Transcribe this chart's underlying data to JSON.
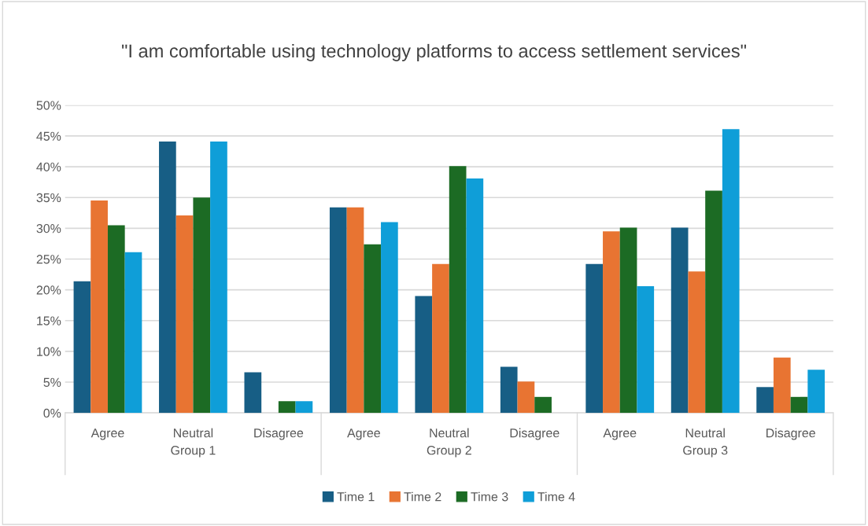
{
  "chart_data": {
    "type": "bar",
    "title": "\"I am comfortable using technology platforms to access settlement services\"",
    "categories": [
      "Agree",
      "Neutral",
      "Disagree",
      "Agree",
      "Neutral",
      "Disagree",
      "Agree",
      "Neutral",
      "Disagree"
    ],
    "annotations": [
      "Group 1",
      "Group 2",
      "Group 3"
    ],
    "series": [
      {
        "name": "Time 1",
        "color": "#175e85",
        "values": [
          21.4,
          44.1,
          6.6,
          33.4,
          19.0,
          7.5,
          24.2,
          30.1,
          4.2
        ]
      },
      {
        "name": "Time 2",
        "color": "#e87432",
        "values": [
          34.5,
          32.1,
          0,
          33.4,
          24.2,
          5.1,
          29.5,
          23.0,
          9.0
        ]
      },
      {
        "name": "Time 3",
        "color": "#1c6b24",
        "values": [
          30.5,
          35.0,
          1.9,
          27.4,
          40.1,
          2.6,
          30.1,
          36.1,
          2.6
        ]
      },
      {
        "name": "Time 4",
        "color": "#0f9ed8",
        "values": [
          26.1,
          44.1,
          1.9,
          31.0,
          38.1,
          0,
          20.6,
          46.1,
          7.0
        ]
      }
    ],
    "ylim": [
      0,
      50
    ],
    "yticks": [
      {
        "value": 0,
        "label": "0%"
      },
      {
        "value": 5,
        "label": "5%"
      },
      {
        "value": 10,
        "label": "10%"
      },
      {
        "value": 15,
        "label": "15%"
      },
      {
        "value": 20,
        "label": "20%"
      },
      {
        "value": 25,
        "label": "25%"
      },
      {
        "value": 30,
        "label": "30%"
      },
      {
        "value": 35,
        "label": "35%"
      },
      {
        "value": 40,
        "label": "40%"
      },
      {
        "value": 45,
        "label": "45%"
      },
      {
        "value": 50,
        "label": "50%"
      }
    ],
    "grid": "y",
    "legend": "bottom"
  }
}
